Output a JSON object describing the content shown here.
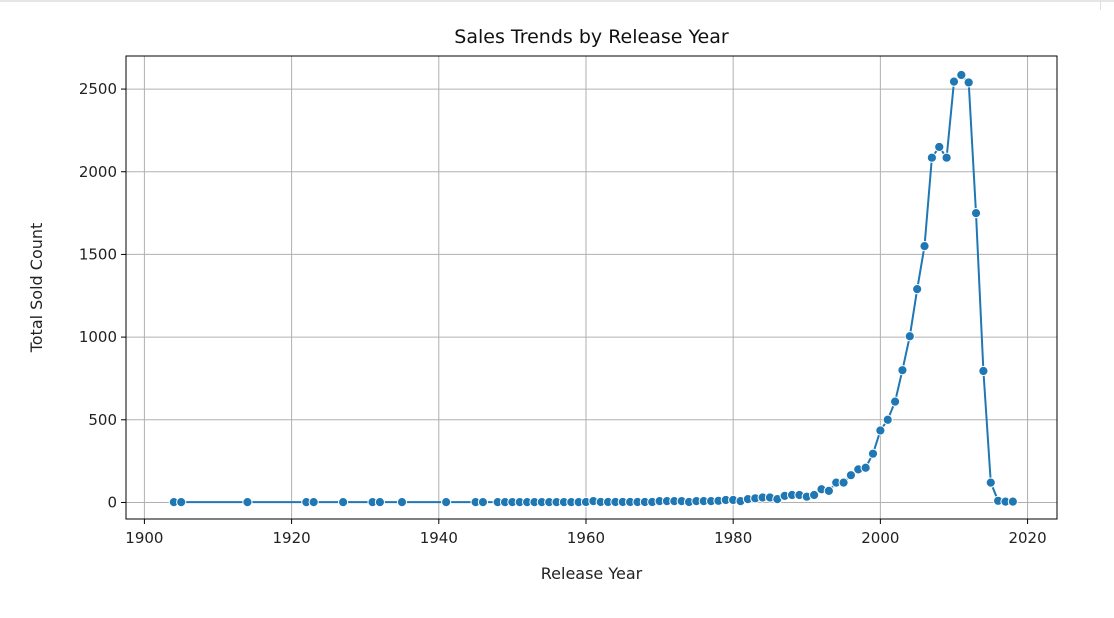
{
  "chart_data": {
    "type": "line",
    "title": "Sales Trends by Release Year",
    "xlabel": "Release Year",
    "ylabel": "Total Sold Count",
    "xlim": [
      1897.5,
      2024
    ],
    "ylim": [
      -100,
      2700
    ],
    "x_ticks": [
      1900,
      1920,
      1940,
      1960,
      1980,
      2000,
      2020
    ],
    "y_ticks": [
      0,
      500,
      1000,
      1500,
      2000,
      2500
    ],
    "grid": true,
    "line_color": "#1f77b4",
    "marker": "circle",
    "series": [
      {
        "x": [
          1904,
          1905,
          1914,
          1922,
          1923,
          1927,
          1931,
          1932,
          1935,
          1941,
          1945,
          1946,
          1948,
          1949,
          1950,
          1951,
          1952,
          1953,
          1954,
          1955,
          1956,
          1957,
          1958,
          1959,
          1960,
          1961,
          1962,
          1963,
          1964,
          1965,
          1966,
          1967,
          1968,
          1969,
          1970,
          1971,
          1972,
          1973,
          1974,
          1975,
          1976,
          1977,
          1978,
          1979,
          1980,
          1981,
          1982,
          1983,
          1984,
          1985,
          1986,
          1987,
          1988,
          1989,
          1990,
          1991,
          1992,
          1993,
          1994,
          1995,
          1996,
          1997,
          1998,
          1999,
          2000,
          2001,
          2002,
          2003,
          2004,
          2005,
          2006,
          2007,
          2008,
          2009,
          2010,
          2011,
          2012,
          2013,
          2014,
          2015,
          2016,
          2017,
          2018
        ],
        "values": [
          2,
          2,
          2,
          2,
          2,
          2,
          2,
          2,
          2,
          2,
          2,
          2,
          2,
          2,
          2,
          2,
          2,
          2,
          2,
          2,
          2,
          2,
          2,
          2,
          3,
          8,
          3,
          3,
          3,
          3,
          3,
          3,
          3,
          3,
          8,
          8,
          8,
          8,
          3,
          8,
          8,
          8,
          10,
          15,
          15,
          8,
          20,
          25,
          30,
          30,
          20,
          40,
          45,
          45,
          35,
          45,
          80,
          70,
          120,
          120,
          165,
          200,
          210,
          295,
          435,
          500,
          610,
          800,
          1005,
          1290,
          1550,
          2085,
          2150,
          2085,
          2545,
          2585,
          2540,
          1750,
          795,
          120,
          10,
          5,
          5
        ]
      }
    ]
  }
}
